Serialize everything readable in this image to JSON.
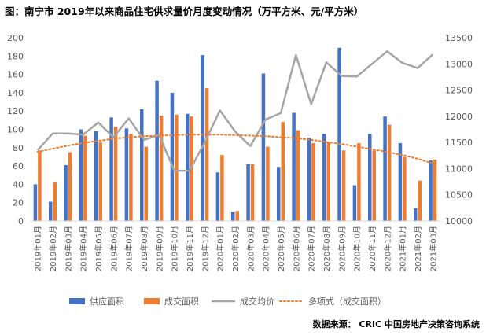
{
  "page_title": "图：南宁市 2019年以来商品住宅供求量价月度变动情况（万平方米、元/平方米）",
  "source_text": "数据来源： CRIC 中国房地产决策咨询系统",
  "chart_data": {
    "type": "bar",
    "title": "图：南宁市 2019年以来商品住宅供求量价月度变动情况（万平方米、元/平方米）",
    "categories": [
      "2019年01月",
      "2019年02月",
      "2019年03月",
      "2019年04月",
      "2019年05月",
      "2019年06月",
      "2019年07月",
      "2019年08月",
      "2019年09月",
      "2019年10月",
      "2019年11月",
      "2019年12月",
      "2020年01月",
      "2020年02月",
      "2020年03月",
      "2020年04月",
      "2020年05月",
      "2020年06月",
      "2020年07月",
      "2020年08月",
      "2020年09月",
      "2020年10月",
      "2020年11月",
      "2020年12月",
      "2021年01月",
      "2021年02月",
      "2021年03月"
    ],
    "series": [
      {
        "name": "供应面积",
        "type": "bar",
        "axis": "left",
        "color": "#4472C4",
        "values": [
          40,
          21,
          61,
          100,
          98,
          113,
          101,
          122,
          153,
          140,
          117,
          181,
          53,
          10,
          62,
          161,
          59,
          118,
          91,
          95,
          189,
          39,
          95,
          114,
          85,
          14,
          66
        ]
      },
      {
        "name": "成交面积",
        "type": "bar",
        "axis": "left",
        "color": "#ED7D31",
        "values": [
          77,
          42,
          75,
          93,
          86,
          103,
          95,
          81,
          115,
          116,
          114,
          145,
          72,
          11,
          62,
          81,
          108,
          99,
          85,
          86,
          77,
          85,
          77,
          105,
          70,
          44,
          67
        ]
      },
      {
        "name": "成交均价",
        "type": "line",
        "axis": "right",
        "color": "#A5A5A5",
        "values": [
          11350,
          11670,
          11670,
          11650,
          11880,
          11600,
          11960,
          11550,
          11640,
          10960,
          10960,
          11500,
          12110,
          11710,
          11430,
          11940,
          12060,
          13170,
          12230,
          13030,
          12770,
          12760,
          13000,
          13240,
          13020,
          12920,
          13180
        ]
      },
      {
        "name": "多项式（成交面积）",
        "type": "trend",
        "axis": "right",
        "color": "#ED7D31",
        "values": [
          11320,
          11380,
          11440,
          11490,
          11530,
          11570,
          11600,
          11620,
          11630,
          11640,
          11650,
          11650,
          11650,
          11640,
          11630,
          11620,
          11600,
          11580,
          11550,
          11510,
          11470,
          11420,
          11370,
          11320,
          11260,
          11190,
          11100
        ]
      }
    ],
    "y_left": {
      "min": 0,
      "max": 200,
      "ticks": [
        0,
        20,
        40,
        60,
        80,
        100,
        120,
        140,
        160,
        180,
        200
      ]
    },
    "y_right": {
      "min": 10000,
      "max": 13500,
      "ticks": [
        10000,
        10500,
        11000,
        11500,
        12000,
        12500,
        13000,
        13500
      ]
    },
    "grid": false,
    "legend_position": "bottom"
  }
}
